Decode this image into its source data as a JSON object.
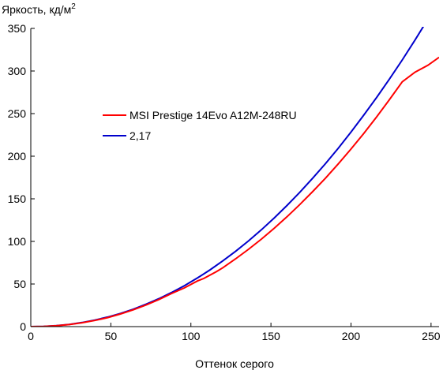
{
  "chart_data": {
    "type": "line",
    "ylabel": "Яркость, кд/м",
    "ylabel_sup": "2",
    "xlabel": "Оттенок серого",
    "xlim": [
      0,
      255
    ],
    "ylim": [
      0,
      350
    ],
    "xticks": [
      0,
      50,
      100,
      150,
      200,
      250
    ],
    "yticks": [
      0,
      50,
      100,
      150,
      200,
      250,
      300,
      350
    ],
    "grid": false,
    "legend_position": "center-left",
    "series": [
      {
        "name": "MSI Prestige 14Evo A12M-248RU",
        "color": "#ff0000",
        "x": [
          0,
          8,
          16,
          24,
          32,
          40,
          48,
          56,
          64,
          72,
          80,
          88,
          96,
          104,
          108,
          112,
          116,
          120,
          128,
          136,
          144,
          152,
          160,
          168,
          176,
          184,
          192,
          200,
          208,
          216,
          224,
          232,
          240,
          248,
          255
        ],
        "y": [
          0,
          0.2,
          1.0,
          2.4,
          4.5,
          7.2,
          10.6,
          14.8,
          19.7,
          25.4,
          31.8,
          38.9,
          45.5,
          53.5,
          56.5,
          60.6,
          64.6,
          69.2,
          79.6,
          90.7,
          102.7,
          115.4,
          128.9,
          143.2,
          158.3,
          174.2,
          190.9,
          208.4,
          226.8,
          246.1,
          266.3,
          287.3,
          298.6,
          306.7,
          316
        ]
      },
      {
        "name": "2,17",
        "color": "#0000cc",
        "x": [
          0,
          8,
          16,
          24,
          32,
          40,
          48,
          56,
          64,
          72,
          80,
          88,
          96,
          104,
          112,
          120,
          128,
          136,
          144,
          152,
          160,
          168,
          176,
          184,
          192,
          200,
          208,
          216,
          224,
          232,
          240,
          248,
          255
        ],
        "y": [
          0,
          0.2,
          1.1,
          2.6,
          4.8,
          7.7,
          11.2,
          15.5,
          20.5,
          26.3,
          32.8,
          40.1,
          48.1,
          57.0,
          66.7,
          77.2,
          88.5,
          100.6,
          113.6,
          127.4,
          142.1,
          157.6,
          174.0,
          191.2,
          209.3,
          228.3,
          248.2,
          268.9,
          290.5,
          313.0,
          336.4,
          360.7,
          382.8
        ]
      }
    ]
  }
}
